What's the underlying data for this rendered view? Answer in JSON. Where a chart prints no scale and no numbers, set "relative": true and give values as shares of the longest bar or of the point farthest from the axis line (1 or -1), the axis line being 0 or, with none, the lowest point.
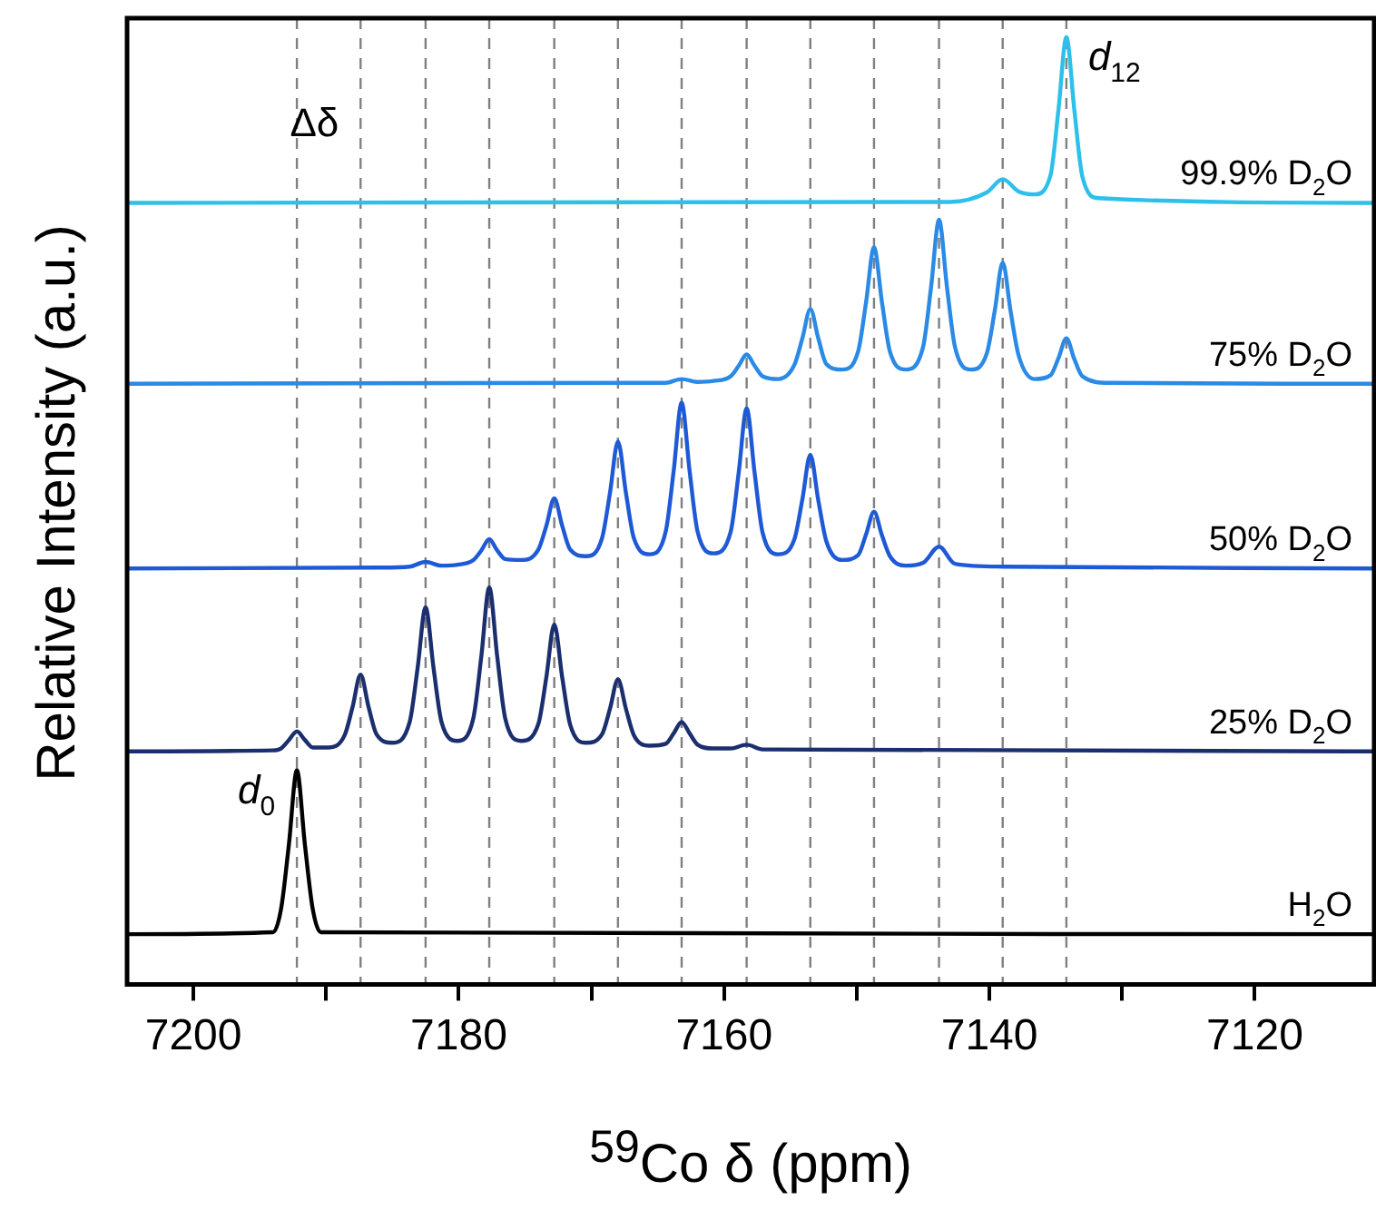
{
  "chart_data": {
    "type": "line",
    "relative": true,
    "xlabel": "$^{59}$Co δ (ppm)",
    "ylabel": "Relative Intensity (a.u.)",
    "xlim": [
      7205,
      7111
    ],
    "xticks": [
      7200,
      {
        "value": 7190,
        "label": null
      },
      7180,
      {
        "value": 7170,
        "label": null
      },
      7160,
      {
        "value": 7150,
        "label": null
      },
      7140,
      {
        "value": 7130,
        "label": null
      },
      7120
    ],
    "tick_labels": "x",
    "legend": false,
    "marker": "none",
    "series": [
      {
        "name": "H$_{2}$O",
        "color": "#000000",
        "x": [
          7205,
          7194,
          7193.4,
          7192.8,
          7192.2,
          7191.6,
          7191.0,
          7190.4,
          7111
        ],
        "values": [
          0.053,
          0.055,
          0.079,
          0.148,
          0.226,
          0.148,
          0.079,
          0.055,
          0.053
        ]
      },
      {
        "name": "25% D$_{2}$O",
        "color": "#1b2f6e",
        "x": [
          7205,
          7194,
          7193.4,
          7192.8,
          7192.2,
          7191.6,
          7191.0,
          7189.8,
          7188.6,
          7188.0,
          7187.4,
          7186.8,
          7186.2,
          7185.0,
          7183.7,
          7183.1,
          7182.5,
          7181.9,
          7181.3,
          7180.1,
          7178.9,
          7178.3,
          7177.7,
          7177.1,
          7176.5,
          7175.3,
          7174.0,
          7173.4,
          7172.8,
          7172.2,
          7171.6,
          7170.4,
          7169.2,
          7168.6,
          7168.0,
          7167.4,
          7166.8,
          7165.6,
          7164.4,
          7163.8,
          7163.2,
          7162.6,
          7162.0,
          7160.8,
          7159.5,
          7158.3,
          7157.1,
          7111
        ],
        "values": [
          0.246,
          0.247,
          0.249,
          0.258,
          0.267,
          0.258,
          0.25,
          0.25,
          0.263,
          0.293,
          0.327,
          0.293,
          0.264,
          0.255,
          0.277,
          0.334,
          0.398,
          0.334,
          0.277,
          0.257,
          0.281,
          0.346,
          0.419,
          0.346,
          0.281,
          0.257,
          0.275,
          0.324,
          0.38,
          0.324,
          0.274,
          0.255,
          0.264,
          0.291,
          0.322,
          0.291,
          0.263,
          0.252,
          0.254,
          0.265,
          0.277,
          0.265,
          0.253,
          0.249,
          0.249,
          0.253,
          0.248,
          0.246
        ]
      },
      {
        "name": "50% D$_{2}$O",
        "color": "#1f5ad6",
        "x": [
          7205,
          7186,
          7183.7,
          7182.5,
          7181.3,
          7180.1,
          7178.9,
          7178.3,
          7177.7,
          7177.1,
          7176.5,
          7175.3,
          7174.0,
          7173.4,
          7172.8,
          7172.2,
          7171.6,
          7170.4,
          7169.2,
          7168.6,
          7168.0,
          7167.4,
          7166.8,
          7165.6,
          7164.4,
          7163.8,
          7163.2,
          7162.6,
          7162.0,
          7160.8,
          7159.5,
          7158.9,
          7158.3,
          7157.7,
          7157.1,
          7155.9,
          7154.7,
          7154.1,
          7153.5,
          7152.9,
          7152.3,
          7151.1,
          7149.9,
          7149.3,
          7148.7,
          7148.1,
          7147.5,
          7146.3,
          7145.0,
          7143.8,
          7142.6,
          7139.0,
          7111
        ],
        "values": [
          0.439,
          0.44,
          0.441,
          0.446,
          0.442,
          0.443,
          0.448,
          0.458,
          0.47,
          0.458,
          0.449,
          0.448,
          0.459,
          0.484,
          0.513,
          0.484,
          0.459,
          0.452,
          0.471,
          0.519,
          0.573,
          0.519,
          0.471,
          0.454,
          0.478,
          0.542,
          0.614,
          0.542,
          0.478,
          0.455,
          0.478,
          0.54,
          0.608,
          0.54,
          0.477,
          0.454,
          0.47,
          0.512,
          0.559,
          0.511,
          0.468,
          0.448,
          0.453,
          0.475,
          0.499,
          0.474,
          0.452,
          0.442,
          0.445,
          0.462,
          0.444,
          0.441,
          0.439
        ]
      },
      {
        "name": "75% D$_{2}$O",
        "color": "#2a8ae6",
        "x": [
          7205,
          7166,
          7164.4,
          7163.2,
          7162.0,
          7160.8,
          7159.5,
          7158.9,
          7158.3,
          7157.7,
          7157.1,
          7155.9,
          7154.7,
          7154.1,
          7153.5,
          7152.9,
          7152.3,
          7151.1,
          7149.9,
          7149.3,
          7148.7,
          7148.1,
          7147.5,
          7146.3,
          7145.0,
          7144.4,
          7143.8,
          7143.2,
          7142.6,
          7141.4,
          7140.2,
          7139.6,
          7139.0,
          7138.4,
          7137.8,
          7136.6,
          7135.4,
          7134.8,
          7134.2,
          7133.6,
          7133.0,
          7131.0,
          7111
        ],
        "values": [
          0.634,
          0.635,
          0.635,
          0.639,
          0.636,
          0.637,
          0.642,
          0.653,
          0.665,
          0.653,
          0.642,
          0.639,
          0.654,
          0.682,
          0.713,
          0.682,
          0.655,
          0.649,
          0.668,
          0.72,
          0.778,
          0.72,
          0.668,
          0.649,
          0.673,
          0.736,
          0.807,
          0.736,
          0.673,
          0.649,
          0.666,
          0.711,
          0.762,
          0.71,
          0.664,
          0.639,
          0.643,
          0.661,
          0.682,
          0.66,
          0.642,
          0.635,
          0.634
        ]
      },
      {
        "name": "99.9% D$_{2}$O",
        "color": "#2cc0ea",
        "x": [
          7205,
          7143,
          7140.2,
          7139.0,
          7137.8,
          7136.6,
          7135.4,
          7134.8,
          7134.2,
          7133.6,
          7133.0,
          7131.8,
          7111
        ],
        "values": [
          0.825,
          0.826,
          0.836,
          0.85,
          0.837,
          0.834,
          0.854,
          0.923,
          1.0,
          0.923,
          0.853,
          0.83,
          0.825
        ]
      }
    ],
    "ref_lines": [
      {
        "axis": "x",
        "value": 7192.2,
        "color": "#808080",
        "line_style": "dashed"
      },
      {
        "axis": "x",
        "value": 7187.4,
        "color": "#808080",
        "line_style": "dashed"
      },
      {
        "axis": "x",
        "value": 7182.5,
        "color": "#808080",
        "line_style": "dashed"
      },
      {
        "axis": "x",
        "value": 7177.7,
        "color": "#808080",
        "line_style": "dashed"
      },
      {
        "axis": "x",
        "value": 7172.8,
        "color": "#808080",
        "line_style": "dashed"
      },
      {
        "axis": "x",
        "value": 7168.0,
        "color": "#808080",
        "line_style": "dashed"
      },
      {
        "axis": "x",
        "value": 7163.2,
        "color": "#808080",
        "line_style": "dashed"
      },
      {
        "axis": "x",
        "value": 7158.3,
        "color": "#808080",
        "line_style": "dashed"
      },
      {
        "axis": "x",
        "value": 7153.5,
        "color": "#808080",
        "line_style": "dashed"
      },
      {
        "axis": "x",
        "value": 7148.7,
        "color": "#808080",
        "line_style": "dashed"
      },
      {
        "axis": "x",
        "value": 7143.8,
        "color": "#808080",
        "line_style": "dashed"
      },
      {
        "axis": "x",
        "value": 7139.0,
        "color": "#808080",
        "line_style": "dashed"
      },
      {
        "axis": "x",
        "value": 7134.2,
        "color": "#808080",
        "line_style": "dashed"
      }
    ],
    "annotations": [
      {
        "text": "d$_{0}$",
        "x": 7192.2,
        "y": 0.226
      },
      {
        "text": "d$_{12}$",
        "x": 7134.2,
        "y": 1.0
      },
      {
        "text": "Δδ",
        "x": 7187.4,
        "y": 0.93
      }
    ]
  }
}
